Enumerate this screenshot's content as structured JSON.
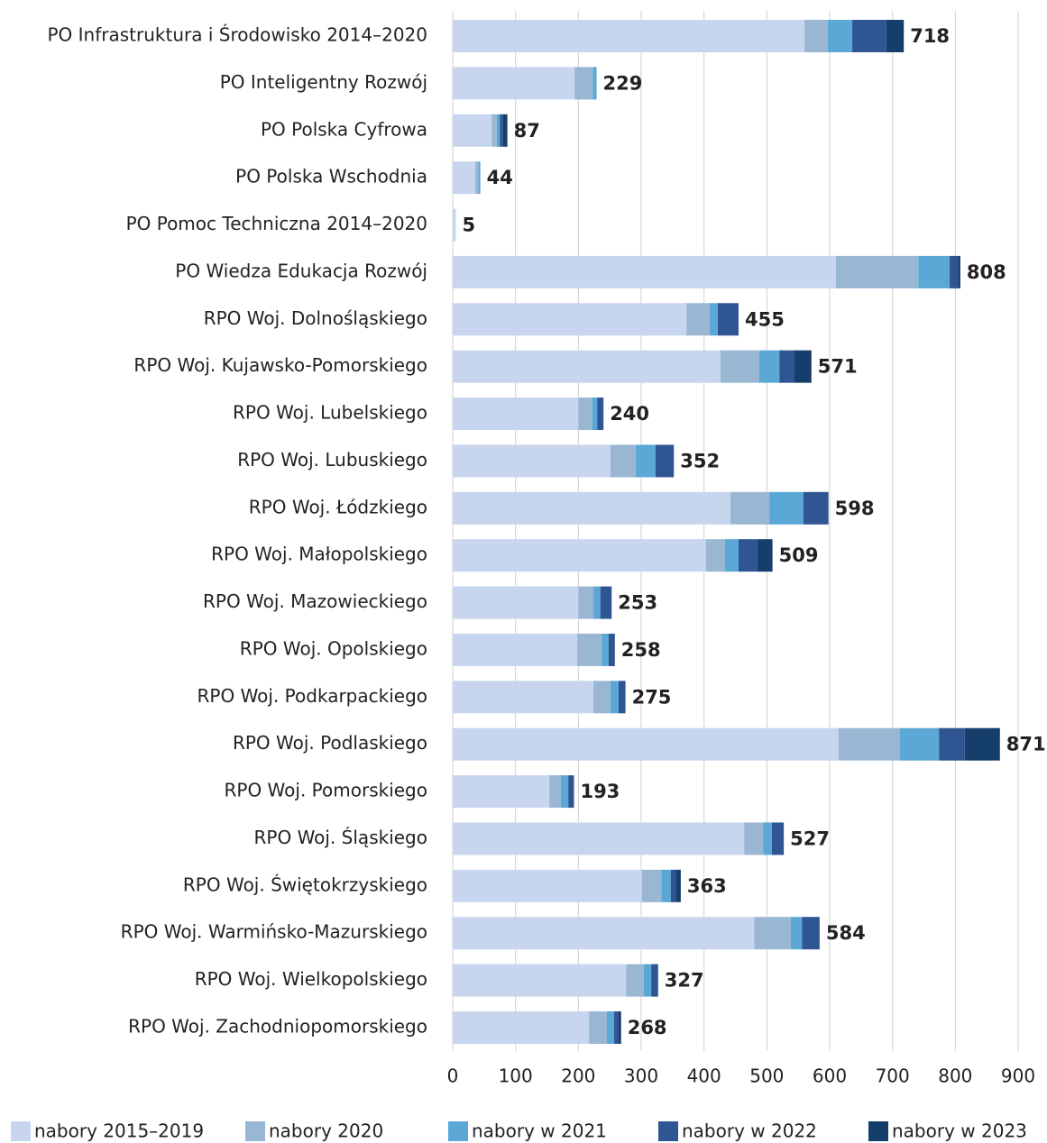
{
  "chart_data": {
    "type": "stacked-bar-horizontal",
    "categories": [
      "PO Infrastruktura i Środowisko 2014–2020",
      "PO Inteligentny Rozwój",
      "PO Polska Cyfrowa",
      "PO Polska Wschodnia",
      "PO Pomoc Techniczna 2014–2020",
      "PO Wiedza Edukacja Rozwój",
      "RPO Woj. Dolnośląskiego",
      "RPO Woj. Kujawsko-Pomorskiego",
      "RPO Woj. Lubelskiego",
      "RPO Woj. Lubuskiego",
      "RPO Woj. Łódzkiego",
      "RPO Woj. Małopolskiego",
      "RPO Woj. Mazowieckiego",
      "RPO Woj. Opolskiego",
      "RPO Woj. Podkarpackiego",
      "RPO Woj. Podlaskiego",
      "RPO Woj. Pomorskiego",
      "RPO Woj. Śląskiego",
      "RPO Woj. Świętokrzyskiego",
      "RPO Woj. Warmińsko-Mazurskiego",
      "RPO Woj. Wielkopolskiego",
      "RPO Woj. Zachodniopomorskiego"
    ],
    "series": [
      {
        "name": "nabory 2015–2019",
        "color": "#c7d5ee",
        "values": [
          560,
          194,
          62,
          36,
          5,
          610,
          372,
          426,
          200,
          251,
          442,
          403,
          200,
          198,
          224,
          614,
          154,
          464,
          301,
          480,
          276,
          217
        ]
      },
      {
        "name": "nabory 2020",
        "color": "#99b7d2",
        "values": [
          37,
          29,
          8,
          5,
          0,
          131,
          37,
          62,
          22,
          40,
          62,
          30,
          24,
          39,
          27,
          98,
          18,
          30,
          31,
          58,
          28,
          28
        ]
      },
      {
        "name": "nabory w 2021",
        "color": "#5ba8d6",
        "values": [
          39,
          6,
          5,
          3,
          0,
          50,
          13,
          32,
          8,
          32,
          54,
          22,
          11,
          11,
          13,
          62,
          12,
          14,
          15,
          18,
          12,
          12
        ]
      },
      {
        "name": "nabory w 2022",
        "color": "#2f5592",
        "values": [
          54,
          0,
          5,
          0,
          0,
          13,
          33,
          24,
          10,
          29,
          38,
          30,
          18,
          8,
          11,
          41,
          9,
          19,
          9,
          28,
          11,
          6
        ]
      },
      {
        "name": "nabory w 2023",
        "color": "#163e6b",
        "values": [
          28,
          0,
          7,
          0,
          0,
          4,
          0,
          27,
          0,
          0,
          2,
          24,
          0,
          2,
          0,
          56,
          0,
          0,
          7,
          0,
          0,
          5
        ]
      }
    ],
    "totals": [
      718,
      229,
      87,
      44,
      5,
      808,
      455,
      571,
      240,
      352,
      598,
      509,
      253,
      258,
      275,
      871,
      193,
      527,
      363,
      584,
      327,
      268
    ],
    "xlim": [
      0,
      900
    ],
    "xticks": [
      0,
      100,
      200,
      300,
      400,
      500,
      600,
      700,
      800,
      900
    ],
    "grid": true,
    "legend": "bottom"
  }
}
